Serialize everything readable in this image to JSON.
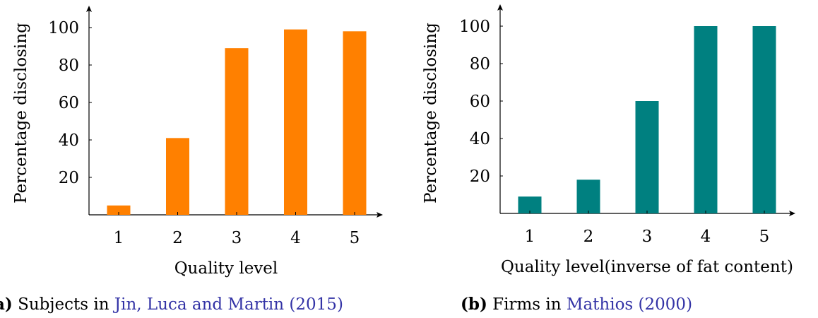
{
  "chart_data": [
    {
      "type": "bar",
      "categories": [
        "1",
        "2",
        "3",
        "4",
        "5"
      ],
      "values": [
        5,
        41,
        89,
        99,
        98
      ],
      "xlabel": "Quality level",
      "ylabel": "Percentage disclosing",
      "yticks": [
        "20",
        "40",
        "60",
        "80",
        "100"
      ],
      "ylim": [
        0,
        100
      ],
      "color": "#ff8000",
      "caption": {
        "letter": "a)",
        "text": "Subjects in ",
        "cite_authors": "Jin, Luca and Martin",
        "cite_year": "2015"
      }
    },
    {
      "type": "bar",
      "categories": [
        "1",
        "2",
        "3",
        "4",
        "5"
      ],
      "values": [
        9,
        18,
        60,
        100,
        100
      ],
      "xlabel": "Quality level(inverse of fat content)",
      "ylabel": "Percentage disclosing",
      "yticks": [
        "20",
        "40",
        "60",
        "80",
        "100"
      ],
      "ylim": [
        0,
        100
      ],
      "color": "#008080",
      "caption": {
        "letter": "(b)",
        "text": "Firms in ",
        "cite_authors": "Mathios",
        "cite_year": "2000"
      }
    }
  ]
}
